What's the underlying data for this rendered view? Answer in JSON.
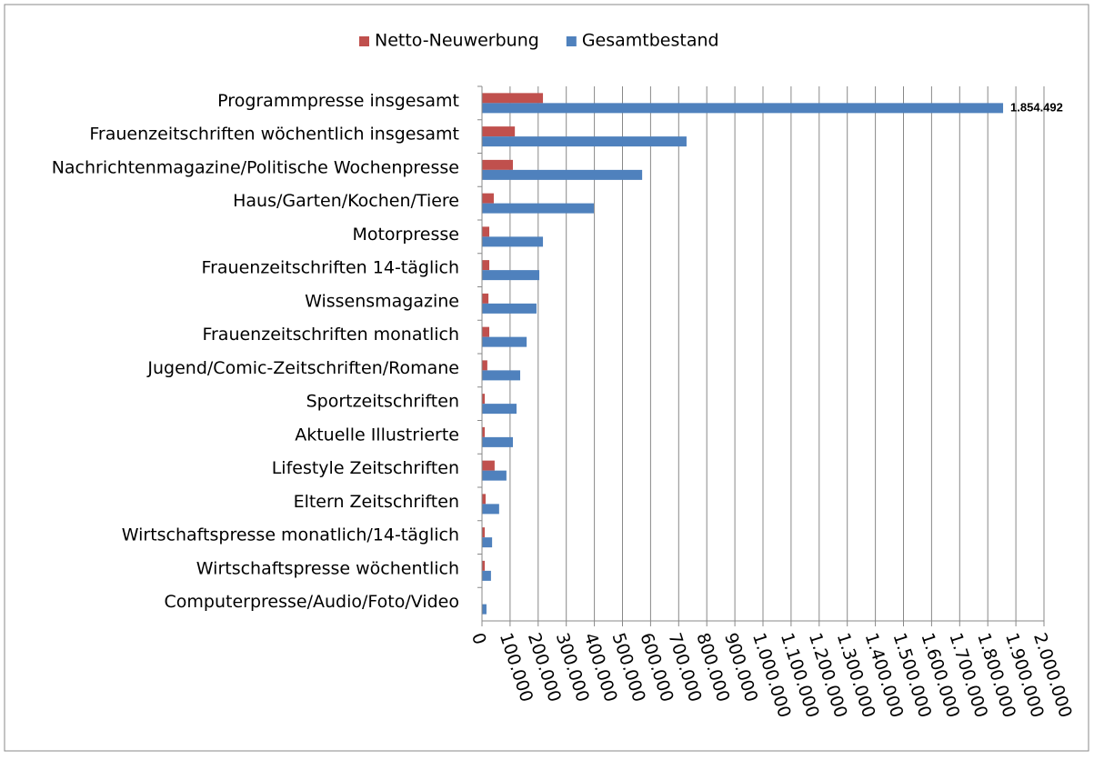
{
  "chart_data": {
    "type": "hbar",
    "categories": [
      "Programmpresse insgesamt",
      "Frauenzeitschriften wöchentlich insgesamt",
      "Nachrichtenmagazine/Politische Wochenpresse",
      "Haus/Garten/Kochen/Tiere",
      "Motorpresse",
      "Frauenzeitschriften 14-täglich",
      "Wissensmagazine",
      "Frauenzeitschriften monatlich",
      "Jugend/Comic-Zeitschriften/Romane",
      "Sportzeitschriften",
      "Aktuelle Illustrierte",
      "Lifestyle Zeitschriften",
      "Eltern Zeitschriften",
      "Wirtschaftspresse monatlich/14-täglich",
      "Wirtschaftspresse wöchentlich",
      "Computerpresse/Audio/Foto/Video"
    ],
    "series": [
      {
        "name": "Netto-Neuwerbung",
        "color": "#c0504d",
        "values": [
          217000,
          117000,
          110000,
          42000,
          26000,
          26000,
          23000,
          26000,
          19000,
          10000,
          10000,
          45000,
          13000,
          10000,
          10000,
          1000
        ]
      },
      {
        "name": "Gesamtbestand",
        "color": "#4f81bd",
        "values": [
          1854492,
          728000,
          570000,
          398000,
          217000,
          204000,
          194000,
          159000,
          136000,
          123000,
          110000,
          87000,
          61000,
          36000,
          32000,
          16000
        ],
        "value_labels": [
          "1.854.492",
          null,
          null,
          null,
          null,
          null,
          null,
          null,
          null,
          null,
          null,
          null,
          null,
          null,
          null,
          null
        ]
      }
    ],
    "xlim": [
      0,
      2000000
    ],
    "xticks": [
      0,
      {
        "value": 100000,
        "label": "100.000"
      },
      {
        "value": 200000,
        "label": "200.000"
      },
      {
        "value": 300000,
        "label": "300.000"
      },
      {
        "value": 400000,
        "label": "400.000"
      },
      {
        "value": 500000,
        "label": "500.000"
      },
      {
        "value": 600000,
        "label": "600.000"
      },
      {
        "value": 700000,
        "label": "700.000"
      },
      {
        "value": 800000,
        "label": "800.000"
      },
      {
        "value": 900000,
        "label": "900.000"
      },
      {
        "value": 1000000,
        "label": "1.000.000"
      },
      {
        "value": 1100000,
        "label": "1.100.000"
      },
      {
        "value": 1200000,
        "label": "1.200.000"
      },
      {
        "value": 1300000,
        "label": "1.300.000"
      },
      {
        "value": 1400000,
        "label": "1.400.000"
      },
      {
        "value": 1500000,
        "label": "1.500.000"
      },
      {
        "value": 1600000,
        "label": "1.600.000"
      },
      {
        "value": 1700000,
        "label": "1.700.000"
      },
      {
        "value": 1800000,
        "label": "1.800.000"
      },
      {
        "value": 1900000,
        "label": "1.900.000"
      },
      {
        "value": 2000000,
        "label": "2.000.000"
      }
    ],
    "grid": true,
    "legend": "top"
  }
}
